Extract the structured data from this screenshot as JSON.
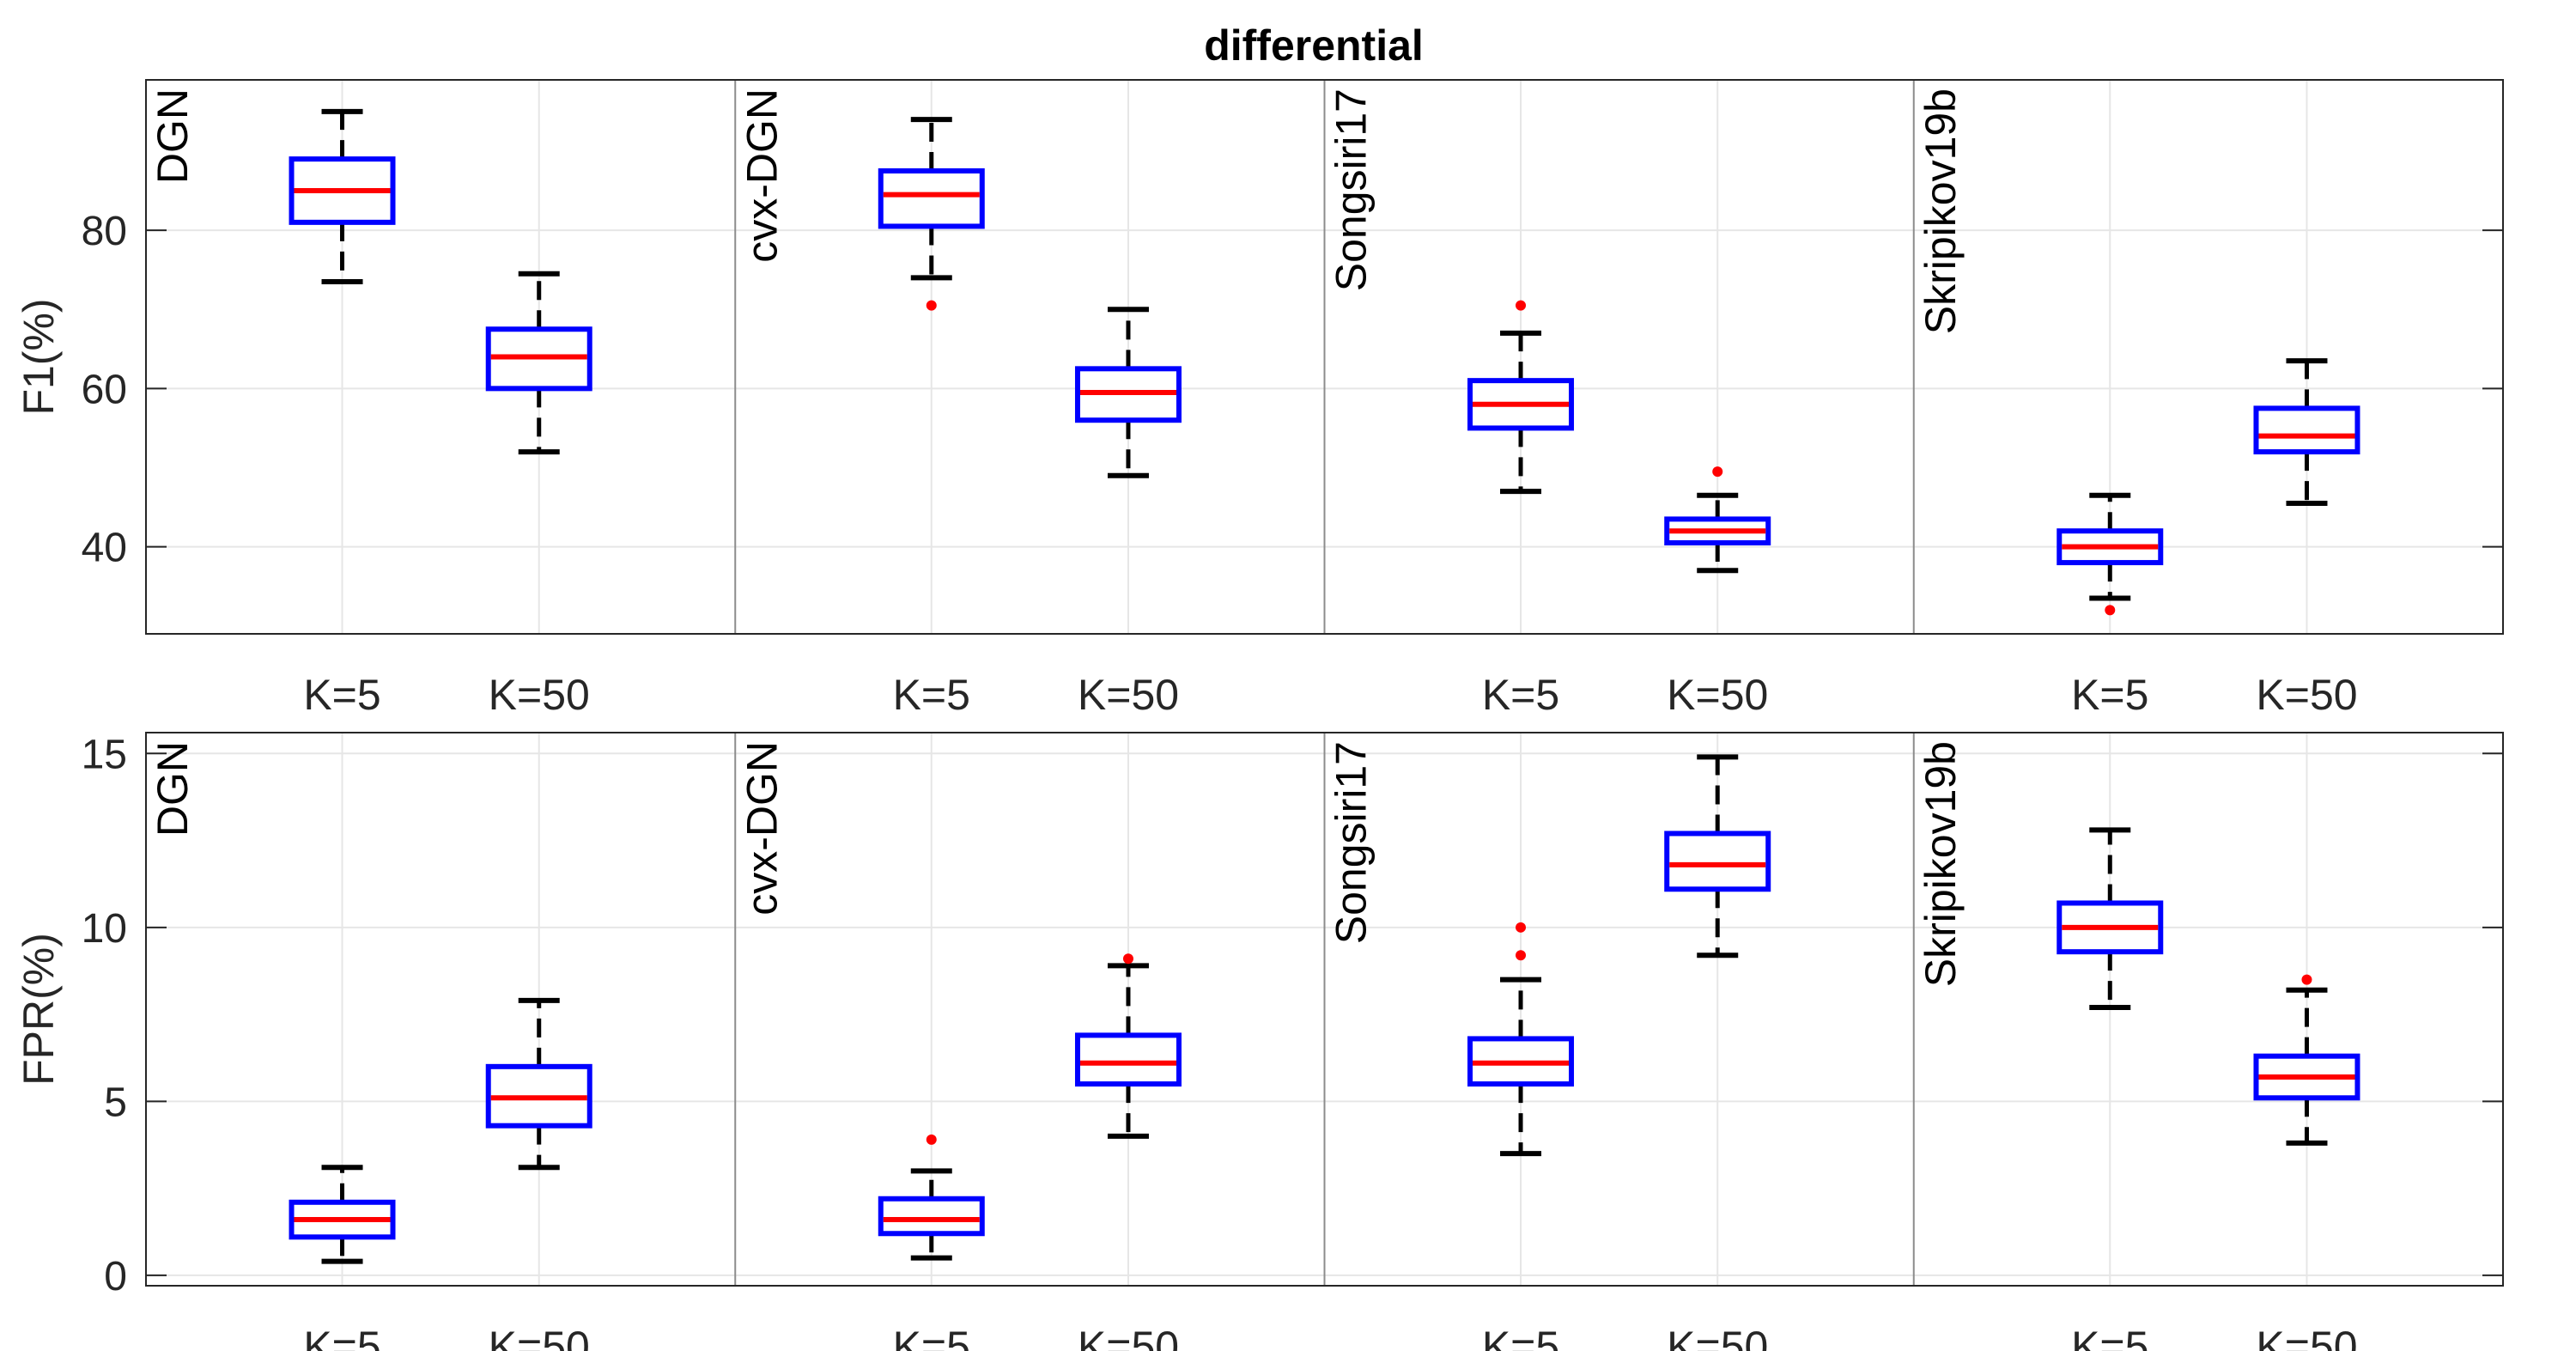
{
  "chart_data": {
    "type": "box",
    "title": "differential",
    "methods": [
      "DGN",
      "cvx-DGN",
      "Songsiri17",
      "Skripikov19b"
    ],
    "categories": [
      "K=5",
      "K=50"
    ],
    "grid": true,
    "panels": [
      {
        "ylabel": "F1(%)",
        "ylim": [
          29,
          99
        ],
        "yticks": [
          40,
          60,
          80
        ],
        "boxes": [
          [
            {
              "whisker_low": 73.5,
              "q1": 81,
              "median": 85,
              "q3": 89,
              "whisker_high": 95,
              "outliers": []
            },
            {
              "whisker_low": 52,
              "q1": 60,
              "median": 64,
              "q3": 67.5,
              "whisker_high": 74.5,
              "outliers": []
            }
          ],
          [
            {
              "whisker_low": 74,
              "q1": 80.5,
              "median": 84.5,
              "q3": 87.5,
              "whisker_high": 94,
              "outliers": [
                70.5
              ]
            },
            {
              "whisker_low": 49,
              "q1": 56,
              "median": 59.5,
              "q3": 62.5,
              "whisker_high": 70,
              "outliers": []
            }
          ],
          [
            {
              "whisker_low": 47,
              "q1": 55,
              "median": 58,
              "q3": 61,
              "whisker_high": 67,
              "outliers": [
                70.5
              ]
            },
            {
              "whisker_low": 37,
              "q1": 40.5,
              "median": 42,
              "q3": 43.5,
              "whisker_high": 46.5,
              "outliers": [
                49.5
              ]
            }
          ],
          [
            {
              "whisker_low": 33.5,
              "q1": 38,
              "median": 40,
              "q3": 42,
              "whisker_high": 46.5,
              "outliers": [
                32
              ]
            },
            {
              "whisker_low": 45.5,
              "q1": 52,
              "median": 54,
              "q3": 57.5,
              "whisker_high": 63.5,
              "outliers": []
            }
          ]
        ]
      },
      {
        "ylabel": "FPR(%)",
        "ylim": [
          -0.3,
          15.6
        ],
        "yticks": [
          0,
          5,
          10,
          15
        ],
        "boxes": [
          [
            {
              "whisker_low": 0.4,
              "q1": 1.1,
              "median": 1.6,
              "q3": 2.1,
              "whisker_high": 3.1,
              "outliers": []
            },
            {
              "whisker_low": 3.1,
              "q1": 4.3,
              "median": 5.1,
              "q3": 6.0,
              "whisker_high": 7.9,
              "outliers": []
            }
          ],
          [
            {
              "whisker_low": 0.5,
              "q1": 1.2,
              "median": 1.6,
              "q3": 2.2,
              "whisker_high": 3.0,
              "outliers": [
                3.9
              ]
            },
            {
              "whisker_low": 4.0,
              "q1": 5.5,
              "median": 6.1,
              "q3": 6.9,
              "whisker_high": 8.9,
              "outliers": [
                9.1
              ]
            }
          ],
          [
            {
              "whisker_low": 3.5,
              "q1": 5.5,
              "median": 6.1,
              "q3": 6.8,
              "whisker_high": 8.5,
              "outliers": [
                9.2,
                10.0
              ]
            },
            {
              "whisker_low": 9.2,
              "q1": 11.1,
              "median": 11.8,
              "q3": 12.7,
              "whisker_high": 14.9,
              "outliers": []
            }
          ],
          [
            {
              "whisker_low": 7.7,
              "q1": 9.3,
              "median": 10.0,
              "q3": 10.7,
              "whisker_high": 12.8,
              "outliers": []
            },
            {
              "whisker_low": 3.8,
              "q1": 5.1,
              "median": 5.7,
              "q3": 6.3,
              "whisker_high": 8.2,
              "outliers": [
                8.5
              ]
            }
          ]
        ]
      }
    ]
  }
}
